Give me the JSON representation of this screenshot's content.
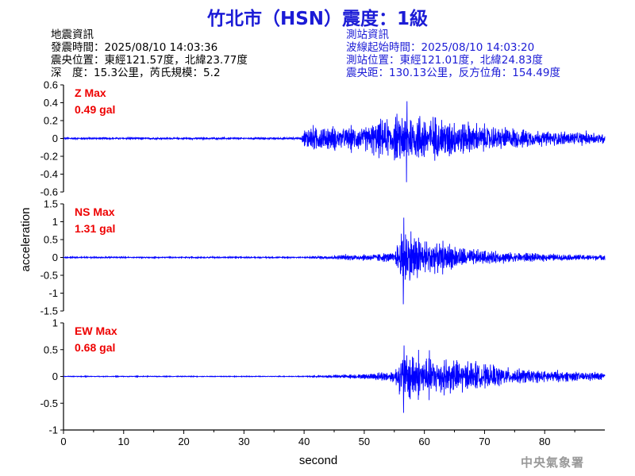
{
  "title": "竹北市（HSN）震度：1級",
  "event_info": {
    "heading": "地震資訊",
    "lines": [
      "發震時間：2025/08/10 14:03:36",
      "震央位置：東經121.57度，北緯23.77度",
      "深　度：15.3公里，芮氏規模：5.2"
    ]
  },
  "station_info": {
    "heading": "測站資訊",
    "lines": [
      "波線起始時間：2025/08/10 14:03:20",
      "測站位置：東經121.01度，北緯24.83度",
      "震央距：130.13公里，反方位角：154.49度"
    ]
  },
  "footer": "中央氣象署",
  "colors": {
    "title": "#1c1cd6",
    "trace": "#0000ff",
    "max_label": "#ee0000",
    "station_text": "#1c1cd6",
    "footer": "#999999"
  },
  "chart_data": {
    "type": "line",
    "xlabel": "second",
    "ylabel": "acceleration",
    "xlim": [
      0,
      90
    ],
    "xticks": [
      "0",
      "10",
      "20",
      "30",
      "40",
      "50",
      "60",
      "70",
      "80"
    ],
    "panels": [
      {
        "name": "Z",
        "max_label": "Z Max",
        "max_value": "0.49 gal",
        "ylim": [
          -0.6,
          0.6
        ],
        "yticks": [
          "0.6",
          "0.4",
          "0.2",
          "0",
          "-0.2",
          "-0.4",
          "-0.6"
        ],
        "peak": 0.49,
        "envelope": [
          [
            0,
            0.012
          ],
          [
            39.5,
            0.012
          ],
          [
            40.2,
            0.12
          ],
          [
            41,
            0.16
          ],
          [
            45,
            0.13
          ],
          [
            50,
            0.15
          ],
          [
            54,
            0.22
          ],
          [
            57,
            0.3
          ],
          [
            60,
            0.28
          ],
          [
            63,
            0.24
          ],
          [
            66,
            0.2
          ],
          [
            70,
            0.16
          ],
          [
            75,
            0.12
          ],
          [
            80,
            0.09
          ],
          [
            85,
            0.08
          ],
          [
            90,
            0.07
          ]
        ]
      },
      {
        "name": "NS",
        "max_label": "NS Max",
        "max_value": "1.31 gal",
        "ylim": [
          -1.5,
          1.5
        ],
        "yticks": [
          "1.5",
          "1",
          "0.5",
          "0",
          "-0.5",
          "-1",
          "-1.5"
        ],
        "peak": 1.31,
        "envelope": [
          [
            0,
            0.02
          ],
          [
            40,
            0.02
          ],
          [
            44,
            0.06
          ],
          [
            50,
            0.1
          ],
          [
            55,
            0.15
          ],
          [
            56.5,
            0.95
          ],
          [
            58,
            0.75
          ],
          [
            60,
            0.55
          ],
          [
            63,
            0.42
          ],
          [
            66,
            0.3
          ],
          [
            70,
            0.2
          ],
          [
            75,
            0.15
          ],
          [
            80,
            0.11
          ],
          [
            85,
            0.09
          ],
          [
            90,
            0.08
          ]
        ]
      },
      {
        "name": "EW",
        "max_label": "EW Max",
        "max_value": "0.68 gal",
        "ylim": [
          -1,
          1
        ],
        "yticks": [
          "1",
          "0.5",
          "0",
          "-0.5",
          "-1"
        ],
        "peak": 0.68,
        "envelope": [
          [
            0,
            0.008
          ],
          [
            40,
            0.008
          ],
          [
            45,
            0.03
          ],
          [
            50,
            0.05
          ],
          [
            55,
            0.12
          ],
          [
            56.5,
            0.5
          ],
          [
            58,
            0.48
          ],
          [
            61,
            0.42
          ],
          [
            64,
            0.35
          ],
          [
            67,
            0.3
          ],
          [
            70,
            0.25
          ],
          [
            75,
            0.16
          ],
          [
            80,
            0.12
          ],
          [
            85,
            0.1
          ],
          [
            90,
            0.08
          ]
        ]
      }
    ]
  }
}
